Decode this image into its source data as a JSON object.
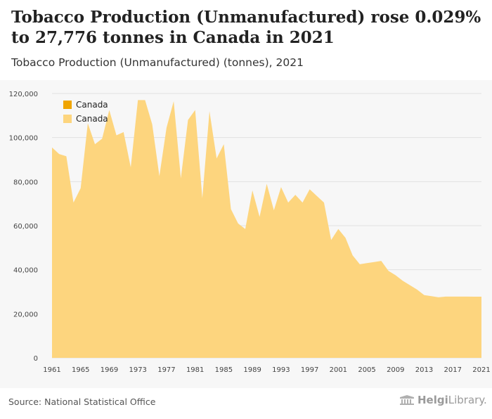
{
  "header": {
    "title": "Tobacco Production (Unmanufactured) rose 0.029% to 27,776 tonnes in Canada in 2021",
    "subtitle": "Tobacco Production (Unmanufactured) (tonnes), 2021"
  },
  "footer": {
    "source": "Source: National Statistical Office",
    "brand_part1": "Helgi",
    "brand_part2": "Library."
  },
  "colors": {
    "area_fill": "#fdd57e",
    "legend_dark": "#f0a500",
    "legend_light": "#fdd57e",
    "grid": "#e2e2e2",
    "axis_text": "#444444"
  },
  "chart_data": {
    "type": "area",
    "title": "Tobacco Production (Unmanufactured) (tonnes), 2021",
    "xlabel": "",
    "ylabel": "",
    "xlim": [
      1961,
      2021
    ],
    "ylim": [
      0,
      120000
    ],
    "yticks": [
      0,
      20000,
      40000,
      60000,
      80000,
      100000,
      120000
    ],
    "ytick_labels": [
      "0",
      "20,000",
      "40,000",
      "60,000",
      "80,000",
      "100,000",
      "120,000"
    ],
    "xticks": [
      1961,
      1965,
      1969,
      1973,
      1977,
      1981,
      1985,
      1989,
      1993,
      1997,
      2001,
      2005,
      2009,
      2013,
      2017,
      2021
    ],
    "grid": true,
    "legend": {
      "position": "top-left",
      "entries": [
        "Canada",
        "Canada"
      ]
    },
    "series": [
      {
        "name": "Canada",
        "x": [
          1961,
          1962,
          1963,
          1964,
          1965,
          1966,
          1967,
          1968,
          1969,
          1970,
          1971,
          1972,
          1973,
          1974,
          1975,
          1976,
          1977,
          1978,
          1979,
          1980,
          1981,
          1982,
          1983,
          1984,
          1985,
          1986,
          1987,
          1988,
          1989,
          1990,
          1991,
          1992,
          1993,
          1994,
          1995,
          1996,
          1997,
          1998,
          1999,
          2000,
          2001,
          2002,
          2003,
          2004,
          2005,
          2006,
          2007,
          2008,
          2009,
          2010,
          2011,
          2012,
          2013,
          2014,
          2015,
          2016,
          2017,
          2018,
          2019,
          2020,
          2021
        ],
        "values": [
          95500,
          92500,
          91500,
          70500,
          77000,
          106500,
          97000,
          99500,
          112500,
          101000,
          102500,
          86500,
          117000,
          117000,
          106000,
          82500,
          104500,
          116500,
          81500,
          108000,
          112500,
          72500,
          112000,
          90500,
          97000,
          67500,
          61000,
          58500,
          76000,
          64000,
          79000,
          67000,
          77500,
          70500,
          74000,
          70500,
          76500,
          73500,
          70500,
          53500,
          58500,
          54500,
          46500,
          42500,
          43000,
          43500,
          44000,
          39500,
          37500,
          35000,
          33000,
          31000,
          28500,
          28000,
          27500,
          27800,
          27800,
          27800,
          27800,
          27768,
          27776
        ]
      }
    ]
  }
}
